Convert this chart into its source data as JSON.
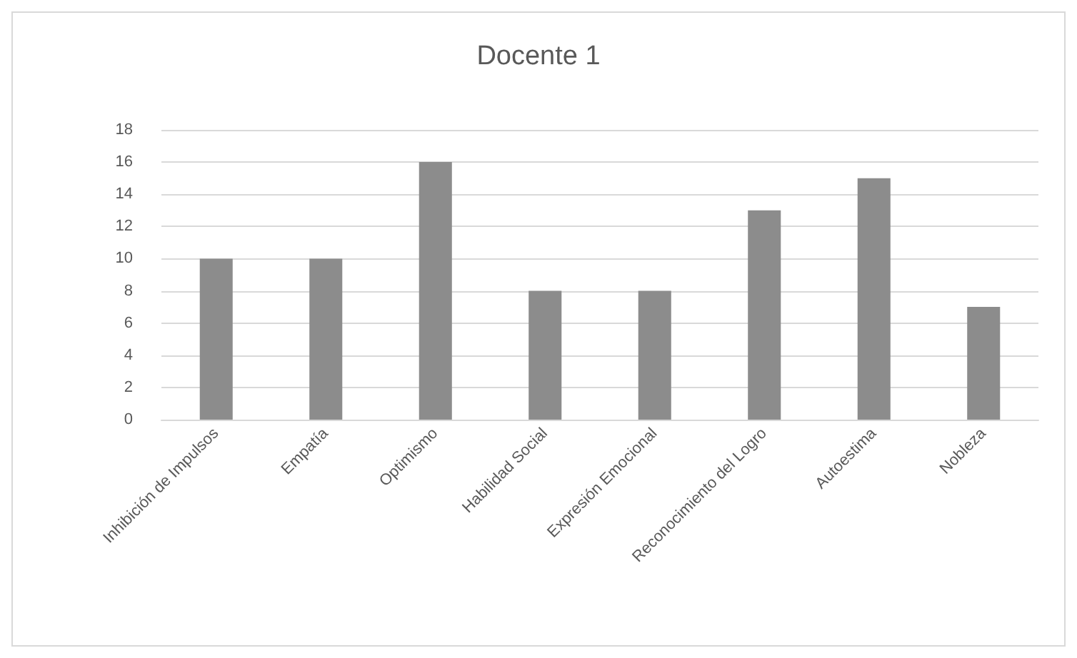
{
  "chart_data": {
    "type": "bar",
    "title": "Docente 1",
    "categories": [
      "Inhibición de Impulsos",
      "Empatía",
      "Optimismo",
      "Habilidad Social",
      "Expresión Emocional",
      "Reconocimiento del Logro",
      "Autoestima",
      "Nobleza"
    ],
    "values": [
      10,
      10,
      16,
      8,
      8,
      13,
      15,
      7
    ],
    "color": "#8c8c8c",
    "ylim": [
      0,
      18
    ],
    "yticks": [
      0,
      2,
      4,
      6,
      8,
      10,
      12,
      14,
      16,
      18
    ],
    "grid": "y"
  }
}
